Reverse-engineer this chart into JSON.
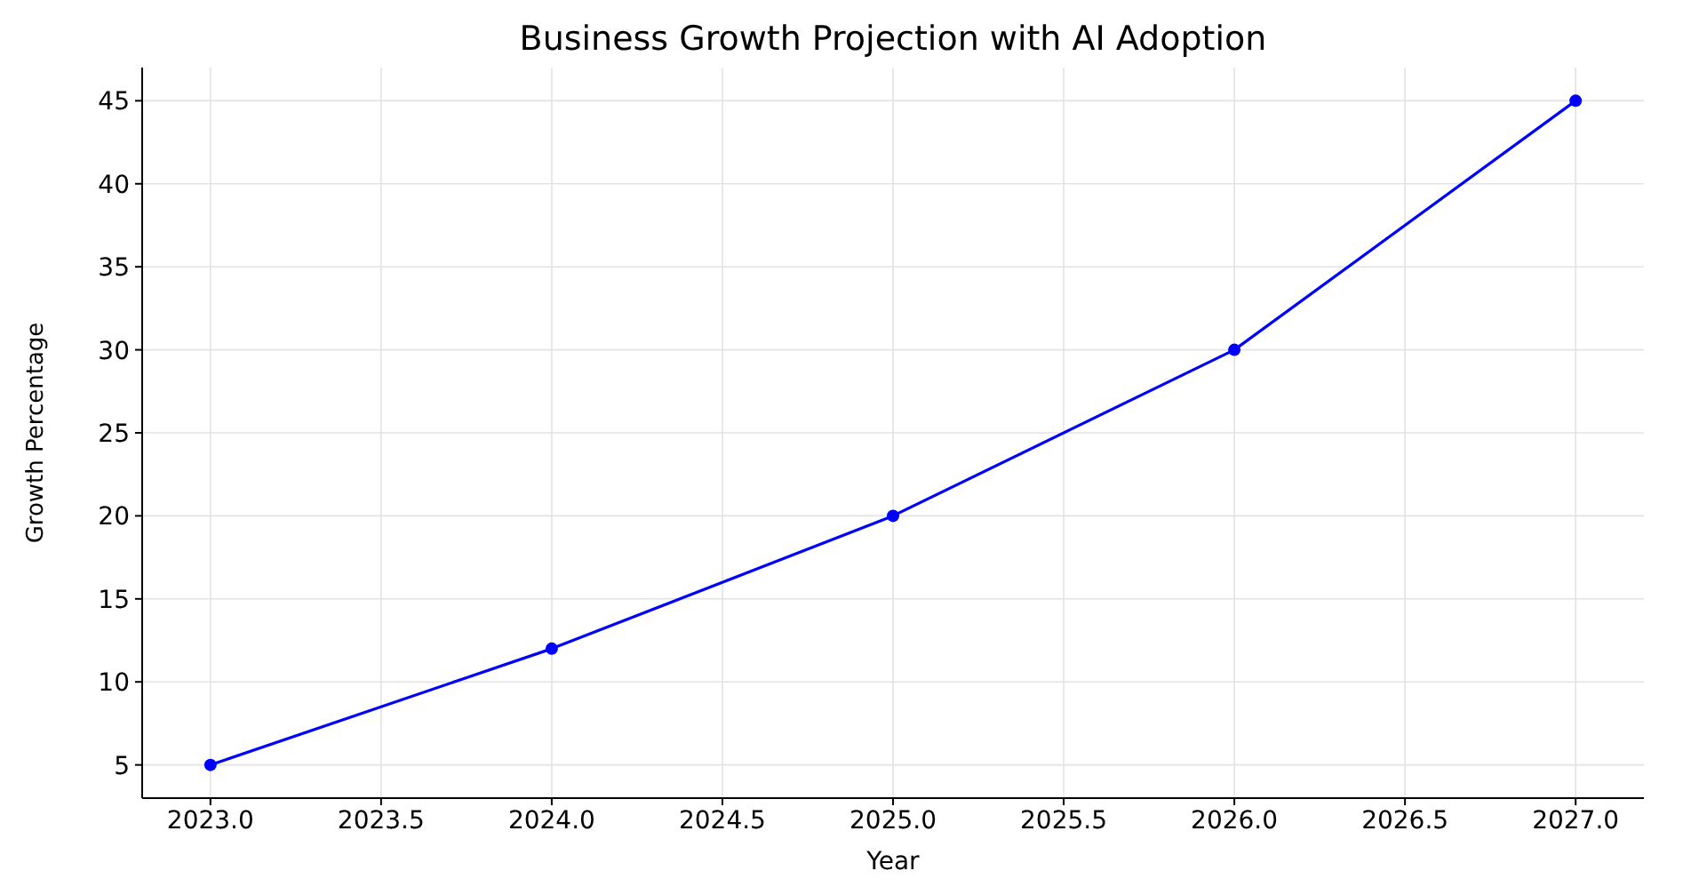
{
  "chart_data": {
    "type": "line",
    "title": "Business Growth Projection with AI Adoption",
    "xlabel": "Year",
    "ylabel": "Growth Percentage",
    "x": [
      2023,
      2024,
      2025,
      2026,
      2027
    ],
    "series": [
      {
        "color": "#0000ff",
        "values": [
          5,
          12,
          20,
          30,
          45
        ]
      }
    ],
    "xlim": [
      2022.8,
      2027.2
    ],
    "xticks": [
      {
        "value": 2023,
        "label": "2023.0"
      },
      {
        "value": 2023.5,
        "label": "2023.5"
      },
      {
        "value": 2024,
        "label": "2024.0"
      },
      {
        "value": 2024.5,
        "label": "2024.5"
      },
      {
        "value": 2025,
        "label": "2025.0"
      },
      {
        "value": 2025.5,
        "label": "2025.5"
      },
      {
        "value": 2026,
        "label": "2026.0"
      },
      {
        "value": 2026.5,
        "label": "2026.5"
      },
      {
        "value": 2027,
        "label": "2027.0"
      }
    ],
    "ylim": [
      3,
      47
    ],
    "yticks": [
      5,
      10,
      15,
      20,
      25,
      30,
      35,
      40,
      45
    ],
    "grid": true,
    "marker": "circle",
    "line_style": "solid"
  }
}
